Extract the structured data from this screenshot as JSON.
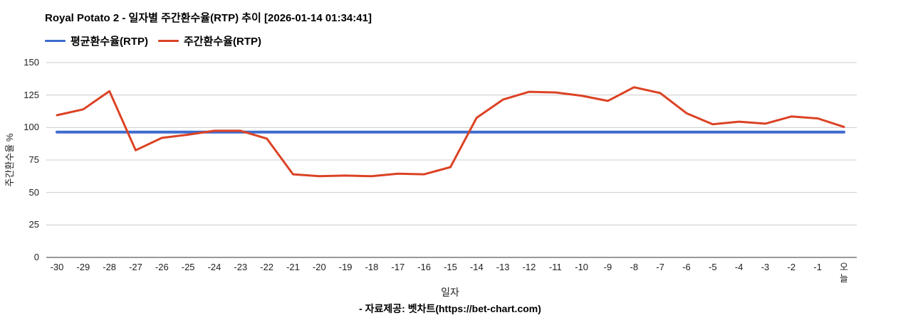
{
  "header": {
    "title": "Royal Potato 2 - 일자별 주간환수율(RTP) 추이 [2026-01-14 01:34:41]"
  },
  "legend": [
    {
      "label": "평균환수율(RTP)",
      "color": "#3E6BCE"
    },
    {
      "label": "주간환수율(RTP)",
      "color": "#DB4224"
    }
  ],
  "chart_data": {
    "type": "line",
    "title": "Royal Potato 2 - 일자별 주간환수율(RTP) 추이 [2026-01-14 01:34:41]",
    "xlabel": "일자",
    "ylabel": "주간환수율 %",
    "ylim": [
      0,
      150
    ],
    "yticks": [
      0,
      25,
      50,
      75,
      100,
      125,
      150
    ],
    "grid": true,
    "legend_position": "top",
    "categories": [
      "-30",
      "-29",
      "-28",
      "-27",
      "-26",
      "-25",
      "-24",
      "-23",
      "-22",
      "-21",
      "-20",
      "-19",
      "-18",
      "-17",
      "-16",
      "-15",
      "-14",
      "-13",
      "-12",
      "-11",
      "-10",
      "-9",
      "-8",
      "-7",
      "-6",
      "-5",
      "-4",
      "-3",
      "-2",
      "-1",
      "오늘"
    ],
    "series": [
      {
        "name": "평균환수율(RTP)",
        "color": "#3E6BCE",
        "constant_value": 96.5
      },
      {
        "name": "주간환수율(RTP)",
        "color": "#DB4224",
        "values": [
          109.5,
          114,
          128,
          82.5,
          92,
          94.5,
          97.5,
          97.5,
          91.5,
          64,
          62.5,
          63,
          62.5,
          64.5,
          64,
          69.5,
          107.5,
          121.5,
          127.5,
          127,
          124.5,
          120.5,
          131,
          126.5,
          111,
          102.5,
          104.5,
          103,
          108.5,
          107,
          100.5
        ]
      }
    ],
    "layout": {
      "stack_last_x_label": true
    }
  },
  "colors": {
    "gridline": "#cccccc",
    "axis_baseline": "#333333"
  },
  "footer": {
    "source": "- 자료제공: 벳차트(https://bet-chart.com)"
  }
}
